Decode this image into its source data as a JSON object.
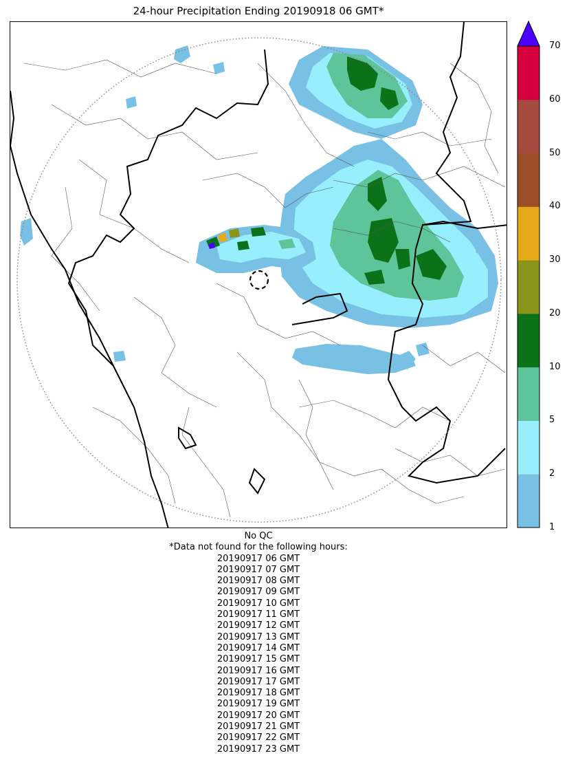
{
  "title": "24-hour Precipitation Ending 20190918 06 GMT*",
  "map": {
    "coverage_ring": "dotted-circle",
    "radar_site_marker": "dashed-circle",
    "boundaries": [
      "coastline",
      "state-borders",
      "district-borders"
    ]
  },
  "colorbar": {
    "levels": [
      "1",
      "2",
      "5",
      "10",
      "20",
      "30",
      "40",
      "50",
      "60",
      "70"
    ],
    "colors": [
      "#79c0e5",
      "#97eefd",
      "#5ec49a",
      "#0c721a",
      "#8a9419",
      "#e7aa1b",
      "#9d4f27",
      "#a44a3f",
      "#d6003f"
    ],
    "extend_color": "#4b00ff"
  },
  "footer": {
    "qc_note": "No QC",
    "missing_header": "*Data not found for the following hours:",
    "missing_hours": [
      "20190917 06 GMT",
      "20190917 07 GMT",
      "20190917 08 GMT",
      "20190917 09 GMT",
      "20190917 10 GMT",
      "20190917 11 GMT",
      "20190917 12 GMT",
      "20190917 13 GMT",
      "20190917 14 GMT",
      "20190917 15 GMT",
      "20190917 16 GMT",
      "20190917 17 GMT",
      "20190917 18 GMT",
      "20190917 19 GMT",
      "20190917 20 GMT",
      "20190917 21 GMT",
      "20190917 22 GMT",
      "20190917 23 GMT"
    ]
  }
}
